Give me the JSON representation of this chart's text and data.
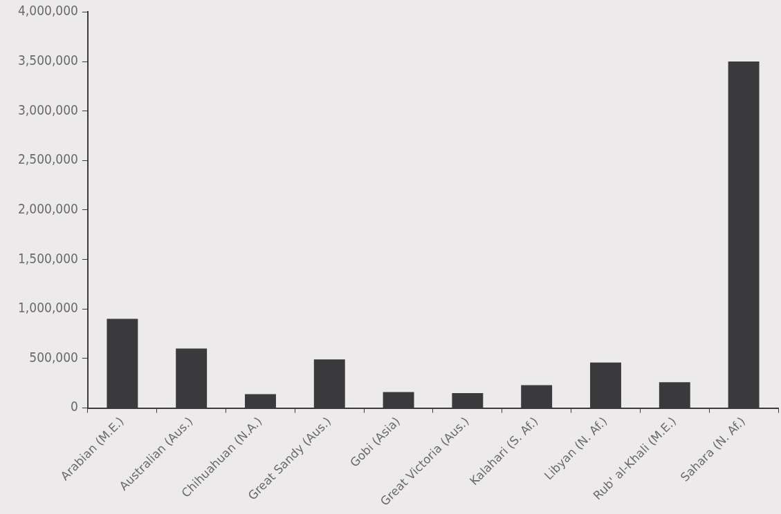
{
  "chart_data": {
    "type": "bar",
    "categories": [
      "Arabian (M.E.)",
      "Australian (Aus.)",
      "Chihuahuan (N.A.)",
      "Great Sandy (Aus.)",
      "Gobi (Asia)",
      "Great Victoria (Aus.)",
      "Kalahari (S. Af.)",
      "Libyan (N. Af.)",
      "Rub' al-Khali (M.E.)",
      "Sahara (N. Af.)"
    ],
    "values": [
      900000,
      600000,
      140000,
      490000,
      160000,
      150000,
      230000,
      460000,
      260000,
      3500000
    ],
    "color": "#3a3a3c",
    "ylim": [
      0,
      4000000
    ],
    "yticks": [
      {
        "value": 0,
        "label": "0"
      },
      {
        "value": 500000,
        "label": "500,000"
      },
      {
        "value": 1000000,
        "label": "1,000,000"
      },
      {
        "value": 1500000,
        "label": "1,500,000"
      },
      {
        "value": 2000000,
        "label": "2,000,000"
      },
      {
        "value": 2500000,
        "label": "2,500,000"
      },
      {
        "value": 3000000,
        "label": "3,000,000"
      },
      {
        "value": 3500000,
        "label": "3,500,000"
      },
      {
        "value": 4000000,
        "label": "4,000,000"
      }
    ],
    "grid": false,
    "legend": false
  }
}
